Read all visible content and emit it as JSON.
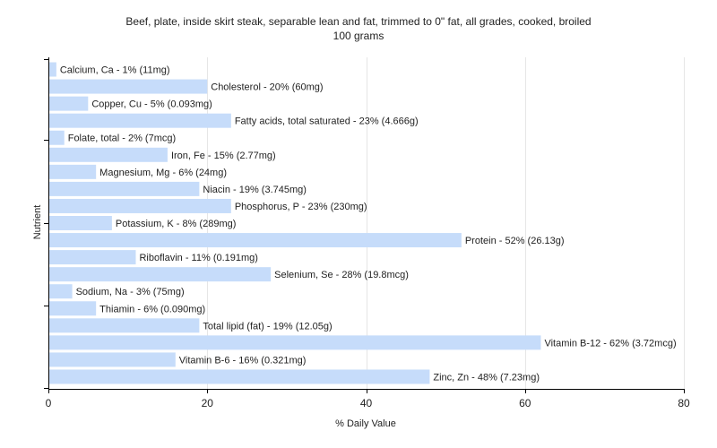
{
  "chart_data": {
    "type": "bar",
    "orientation": "horizontal",
    "title": "Beef, plate, inside skirt steak, separable lean and fat, trimmed to 0\" fat, all grades, cooked, broiled",
    "subtitle": "100 grams",
    "xlabel": "% Daily Value",
    "ylabel": "Nutrient",
    "xlim": [
      0,
      80
    ],
    "xticks": [
      0,
      20,
      40,
      60,
      80
    ],
    "grid": true,
    "colors": {
      "bar": "#c6dcfa",
      "grid": "#e6e6e6",
      "axis": "#000000"
    },
    "categories": [
      "Calcium, Ca",
      "Cholesterol",
      "Copper, Cu",
      "Fatty acids, total saturated",
      "Folate, total",
      "Iron, Fe",
      "Magnesium, Mg",
      "Niacin",
      "Phosphorus, P",
      "Potassium, K",
      "Protein",
      "Riboflavin",
      "Selenium, Se",
      "Sodium, Na",
      "Thiamin",
      "Total lipid (fat)",
      "Vitamin B-12",
      "Vitamin B-6",
      "Zinc, Zn"
    ],
    "values": [
      1,
      20,
      5,
      23,
      2,
      15,
      6,
      19,
      23,
      8,
      52,
      11,
      28,
      3,
      6,
      19,
      62,
      16,
      48
    ],
    "labels": [
      "Calcium, Ca - 1% (11mg)",
      "Cholesterol - 20% (60mg)",
      "Copper, Cu - 5% (0.093mg)",
      "Fatty acids, total saturated - 23% (4.666g)",
      "Folate, total - 2% (7mcg)",
      "Iron, Fe - 15% (2.77mg)",
      "Magnesium, Mg - 6% (24mg)",
      "Niacin - 19% (3.745mg)",
      "Phosphorus, P - 23% (230mg)",
      "Potassium, K - 8% (289mg)",
      "Protein - 52% (26.13g)",
      "Riboflavin - 11% (0.191mg)",
      "Selenium, Se - 28% (19.8mcg)",
      "Sodium, Na - 3% (75mg)",
      "Thiamin - 6% (0.090mg)",
      "Total lipid (fat) - 19% (12.05g)",
      "Vitamin B-12 - 62% (3.72mcg)",
      "Vitamin B-6 - 16% (0.321mg)",
      "Zinc, Zn - 48% (7.23mg)"
    ]
  }
}
